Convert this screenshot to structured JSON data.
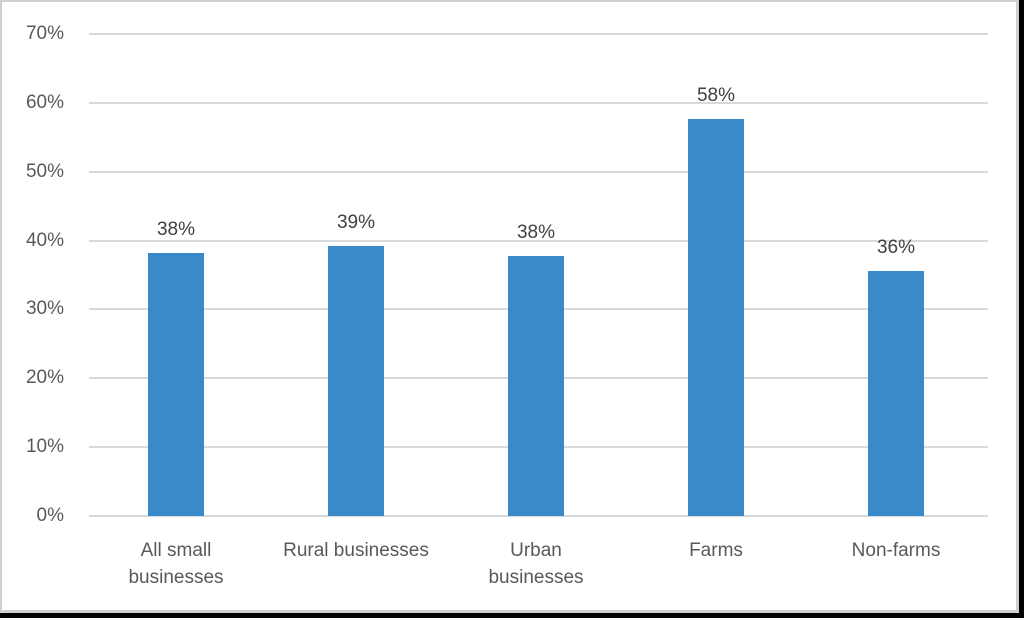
{
  "chart_data": {
    "type": "bar",
    "title": "",
    "xlabel": "",
    "ylabel": "",
    "categories": [
      "All small businesses",
      "Rural businesses",
      "Urban businesses",
      "Farms",
      "Non-farms"
    ],
    "category_lines": [
      [
        "All small",
        "businesses"
      ],
      [
        "Rural businesses",
        ""
      ],
      [
        "Urban",
        "businesses"
      ],
      [
        "Farms",
        ""
      ],
      [
        "Non-farms",
        ""
      ]
    ],
    "values": [
      38,
      39,
      38,
      58,
      36
    ],
    "data_labels": [
      "38%",
      "39%",
      "38%",
      "58%",
      "36%"
    ],
    "ylim": [
      0,
      70
    ],
    "yticks": [
      "0%",
      "10%",
      "20%",
      "30%",
      "40%",
      "50%",
      "60%",
      "70%"
    ],
    "grid": true,
    "legend": null,
    "bar_color": "#398ACB"
  }
}
